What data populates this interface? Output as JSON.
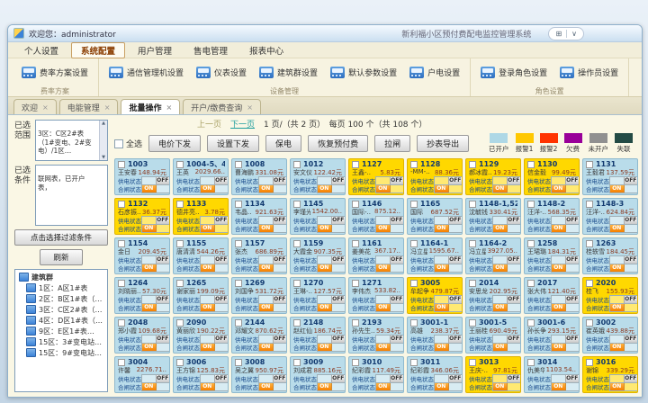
{
  "window": {
    "welcome": "欢迎您：administrator",
    "app_title": "新利福小区预付费配电监控管理系统"
  },
  "menu": {
    "items": [
      {
        "label": "个人设置",
        "active": false
      },
      {
        "label": "系统配置",
        "active": true
      },
      {
        "label": "用户管理",
        "active": false
      },
      {
        "label": "售电管理",
        "active": false
      },
      {
        "label": "报表中心",
        "active": false
      }
    ]
  },
  "ribbon": {
    "groups": [
      {
        "label": "费率方案",
        "buttons": [
          "费率方案设置"
        ]
      },
      {
        "label": "设备管理",
        "buttons": [
          "通信管理机设置",
          "仪表设置",
          "建筑群设置",
          "默认参数设置",
          "户电设置"
        ]
      },
      {
        "label": "角色设置",
        "buttons": [
          "登录角色设置",
          "操作员设置"
        ]
      }
    ]
  },
  "tabs": [
    {
      "label": "欢迎",
      "active": false
    },
    {
      "label": "电能管理",
      "active": false
    },
    {
      "label": "批量操作",
      "active": true
    },
    {
      "label": "开户/缴费查询",
      "active": false
    }
  ],
  "sidebar": {
    "selected_range_label": "已选范围",
    "selected_range_text": "3区：C区2#表（1#变电、2#变电）/1区…",
    "selected_filter_label": "已选条件",
    "selected_filter_text": "联网表，已开户表，",
    "filter_button": "点击选择过滤条件",
    "refresh_button": "刷新",
    "tree": {
      "root": "建筑群",
      "items": [
        "1区：A区1#表",
        "2区：B区1#表（1#变…",
        "3区：C区2#表（1#变电…",
        "4区：D区1#表（1区…",
        "9区：E区1#表…",
        "15区：3#变电站（3#变…",
        "15区：9#变电站（9#变…"
      ]
    }
  },
  "pagination": {
    "prev": "上一页",
    "next": "下一页",
    "info": "1 页/（共 2 页）　每页 100 个（共 108 个）"
  },
  "controls": {
    "select_all": "全选",
    "buttons": [
      "电价下发",
      "设置下发",
      "保电",
      "恢复预付费",
      "拉闸",
      "抄表导出"
    ]
  },
  "legend": [
    {
      "label": "已开户",
      "color": "#AED8E6"
    },
    {
      "label": "报警1",
      "color": "#FFC800"
    },
    {
      "label": "报警2",
      "color": "#FF3300"
    },
    {
      "label": "欠费",
      "color": "#990099"
    },
    {
      "label": "未开户",
      "color": "#909090"
    },
    {
      "label": "失联",
      "color": "#234B45"
    }
  ],
  "colors": {
    "card_open": "#B9DCEA",
    "card_alarm1": "#FFD800",
    "on_button": "#F57F00"
  },
  "card_labels": {
    "supply": "供电状态",
    "switch": "合闸状态",
    "on": "ON",
    "off": "OFF"
  },
  "cards": [
    {
      "room": "1003",
      "name": "王安春",
      "balance": "148.94元",
      "status": "open"
    },
    {
      "room": "1004-5、48-1",
      "name": "王英",
      "balance": "2029.66..",
      "status": "open"
    },
    {
      "room": "1008",
      "name": "曹海鹏..",
      "balance": "331.08元",
      "status": "open"
    },
    {
      "room": "1012",
      "name": "安文仪..",
      "balance": "122.42元",
      "status": "open"
    },
    {
      "room": "1127",
      "name": "王鑫-..",
      "balance": "5.83元",
      "status": "alarm1"
    },
    {
      "room": "1128",
      "name": "-MM-..",
      "balance": "88.36元",
      "status": "alarm1"
    },
    {
      "room": "1129",
      "name": "郝冰霞..",
      "balance": "19.23元",
      "status": "alarm1"
    },
    {
      "room": "1130",
      "name": "信金毅",
      "balance": "99.49元",
      "status": "alarm1"
    },
    {
      "room": "1131",
      "name": "王毅君..",
      "balance": "137.59元",
      "status": "open"
    },
    {
      "room": "1132",
      "name": "石彦振..",
      "balance": "36.37元",
      "status": "alarm1"
    },
    {
      "room": "1133",
      "name": "德井亮..",
      "balance": "3.78元",
      "status": "alarm1"
    },
    {
      "room": "1134",
      "name": "韦晶..",
      "balance": "921.63元",
      "status": "open"
    },
    {
      "room": "1145",
      "name": "李瑾光..",
      "balance": "1542.00..",
      "status": "open"
    },
    {
      "room": "1146",
      "name": "国际-..",
      "balance": "875.12..",
      "status": "open"
    },
    {
      "room": "1165",
      "name": "国际",
      "balance": "687.52元",
      "status": "open"
    },
    {
      "room": "1148-1,522",
      "name": "沈毓钱",
      "balance": "330.41元",
      "status": "open"
    },
    {
      "room": "1148-2",
      "name": "汪洋-..",
      "balance": "568.35元",
      "status": "open"
    },
    {
      "room": "1148-3",
      "name": "汪洋-..",
      "balance": "624.84元",
      "status": "open"
    },
    {
      "room": "1154",
      "name": "金日",
      "balance": "209.45元",
      "status": "open"
    },
    {
      "room": "1155",
      "name": "唐清清",
      "balance": "544.26元",
      "status": "open"
    },
    {
      "room": "1157",
      "name": "张杰",
      "balance": "686.89元",
      "status": "open"
    },
    {
      "room": "1159",
      "name": "大霞金",
      "balance": "907.35元",
      "status": "open"
    },
    {
      "room": "1161",
      "name": "姜美花",
      "balance": "367.17..",
      "status": "open"
    },
    {
      "room": "1164-1",
      "name": "冯立星",
      "balance": "1595.67..",
      "status": "open"
    },
    {
      "room": "1164-2",
      "name": "冯立星",
      "balance": "3927.05..",
      "status": "open"
    },
    {
      "room": "1258",
      "name": "王珺璐..",
      "balance": "184.31元",
      "status": "open"
    },
    {
      "room": "1263",
      "name": "桂轶雪..",
      "balance": "184.45元",
      "status": "open"
    },
    {
      "room": "1264",
      "name": "刘晓丽..",
      "balance": "57.30元",
      "status": "open"
    },
    {
      "room": "1265",
      "name": "谢家丽",
      "balance": "199.09元",
      "status": "open"
    },
    {
      "room": "1269",
      "name": "刘国争",
      "balance": "531.72元",
      "status": "open"
    },
    {
      "room": "1270",
      "name": "王琳-..",
      "balance": "127.57元",
      "status": "open"
    },
    {
      "room": "1271",
      "name": "李伟杰",
      "balance": "533.82..",
      "status": "open"
    },
    {
      "room": "3005",
      "name": "牟起争",
      "balance": "479.87元",
      "status": "alarm1"
    },
    {
      "room": "2014",
      "name": "安思龙",
      "balance": "202.95元",
      "status": "open"
    },
    {
      "room": "2017",
      "name": "张大伟",
      "balance": "121.40元",
      "status": "open"
    },
    {
      "room": "2020",
      "name": "桂飞",
      "balance": "155.93元",
      "status": "alarm1"
    },
    {
      "room": "2048",
      "name": "郑小霞",
      "balance": "109.68元",
      "status": "open"
    },
    {
      "room": "2090",
      "name": "黄丽欣",
      "balance": "190.22元",
      "status": "open"
    },
    {
      "room": "2144",
      "name": "邓耀文",
      "balance": "870.62元",
      "status": "open"
    },
    {
      "room": "2148",
      "name": "赵红仙",
      "balance": "186.74元",
      "status": "open"
    },
    {
      "room": "2193",
      "name": "孙先生..",
      "balance": "59.34元",
      "status": "open"
    },
    {
      "room": "3001-1",
      "name": "高雄",
      "balance": "238.37元",
      "status": "open"
    },
    {
      "room": "3001-5",
      "name": "王丽桂",
      "balance": "690.49元",
      "status": "open"
    },
    {
      "room": "3001-6",
      "name": "孙长争..",
      "balance": "293.15元",
      "status": "open"
    },
    {
      "room": "3002",
      "name": "崔英娥",
      "balance": "439.88元",
      "status": "open"
    },
    {
      "room": "3004",
      "name": "许馨",
      "balance": "2276.71..",
      "status": "open"
    },
    {
      "room": "3006",
      "name": "王方锦",
      "balance": "125.83元",
      "status": "open"
    },
    {
      "room": "3008",
      "name": "吴之翼",
      "balance": "950.97元",
      "status": "open"
    },
    {
      "room": "3009",
      "name": "刘成君",
      "balance": "885.16元",
      "status": "open"
    },
    {
      "room": "3010",
      "name": "纪彩霞..",
      "balance": "117.49元",
      "status": "open"
    },
    {
      "room": "3011",
      "name": "纪彩霞",
      "balance": "346.06元",
      "status": "open"
    },
    {
      "room": "3013",
      "name": "王庆-..",
      "balance": "97.81元",
      "status": "alarm1"
    },
    {
      "room": "3014",
      "name": "仇美华",
      "balance": "1103.54..",
      "status": "open"
    },
    {
      "room": "3016",
      "name": "谢锦",
      "balance": "339.29元",
      "status": "alarm1"
    }
  ]
}
